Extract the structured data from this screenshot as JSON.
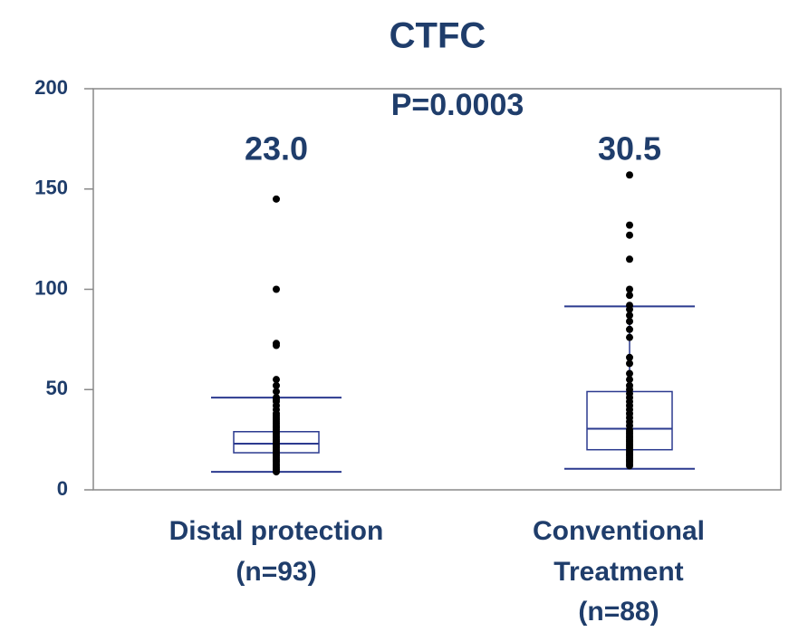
{
  "chart_data": {
    "type": "box",
    "title": "CTFC",
    "annotation": "P=0.0003",
    "categories": [
      [
        "Distal protection",
        "(n=93)"
      ],
      [
        "Conventional",
        "Treatment",
        "(n=88)"
      ]
    ],
    "ylim": [
      0,
      200
    ],
    "yticks": [
      0,
      50,
      100,
      150,
      200
    ],
    "box_color": "#2b3a8f",
    "point_color": "#000000",
    "boxes": [
      {
        "whisker_low": 9,
        "q1": 18.5,
        "median": 23.0,
        "median_label": "23.0",
        "q3": 29,
        "whisker_high": 46,
        "points": [
          145,
          100,
          73,
          72,
          55,
          52,
          49,
          46,
          45,
          44,
          42,
          40,
          38,
          37,
          36,
          35,
          34,
          33,
          32,
          31,
          30,
          29,
          28,
          27,
          26,
          25,
          24,
          23,
          22,
          21,
          20,
          19,
          18,
          17,
          16,
          15,
          14,
          13,
          12,
          11,
          10,
          9
        ]
      },
      {
        "whisker_low": 10.5,
        "q1": 20,
        "median": 30.5,
        "median_label": "30.5",
        "q3": 49,
        "whisker_high": 91.5,
        "points": [
          157,
          132,
          127,
          115,
          100,
          97,
          92,
          90,
          87,
          84,
          80,
          76,
          66,
          63,
          58,
          55,
          52,
          50,
          48,
          46,
          44,
          42,
          40,
          38,
          36,
          34,
          32,
          30,
          29,
          28,
          27,
          26,
          25,
          24,
          23,
          22,
          21,
          20,
          19,
          18,
          17,
          16,
          15,
          14,
          13,
          12
        ]
      }
    ]
  }
}
